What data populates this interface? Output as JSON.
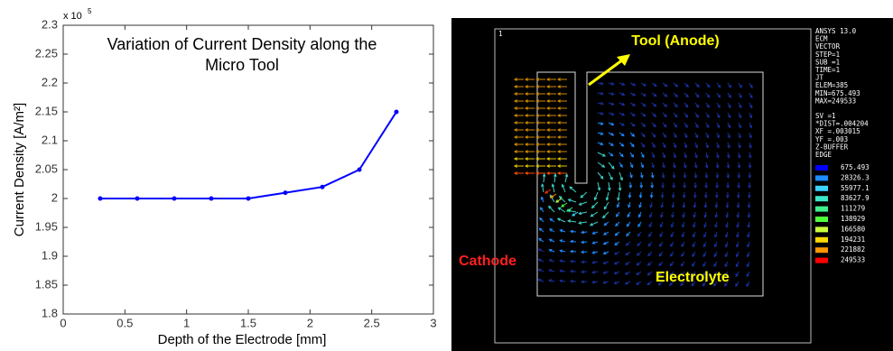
{
  "chart_data": {
    "type": "line",
    "title": [
      "Variation of Current Density along the",
      "Micro Tool"
    ],
    "xlabel": "Depth of the Electrode [mm]",
    "ylabel": "Current Density [A/m²]",
    "y_multiplier": "x 10",
    "y_multiplier_exponent": "5",
    "x": [
      0.3,
      0.6,
      0.9,
      1.2,
      1.5,
      1.8,
      2.1,
      2.4,
      2.7
    ],
    "values": [
      2.0,
      2.0,
      2.0,
      2.0,
      2.0,
      2.01,
      2.02,
      2.05,
      2.15
    ],
    "color": "#0000ff",
    "xlim": [
      0,
      3
    ],
    "xticks": [
      0,
      0.5,
      1,
      1.5,
      2,
      2.5,
      3
    ],
    "ylim": [
      1.8,
      2.3
    ],
    "yticks": [
      1.8,
      1.85,
      1.9,
      1.95,
      2,
      2.05,
      2.1,
      2.15,
      2.2,
      2.25,
      2.3
    ],
    "grid": false
  },
  "simulation_panel": {
    "window_number": "1",
    "tool_label": "Tool (Anode)",
    "cathode_label": "Cathode",
    "electrolyte_label": "Electrolyte",
    "info_lines": [
      "ANSYS 13.0",
      "ECM",
      "VECTOR",
      "STEP=1",
      "SUB =1",
      "TIME=1",
      "JT",
      "ELEM=385",
      "MIN=675.493",
      "MAX=249533"
    ],
    "info_lines_2": [
      "SV  =1",
      "*DIST=.004204",
      "XF  =.003015",
      "YF  =.003",
      "Z-BUFFER",
      "EDGE"
    ],
    "legend": [
      {
        "label": 675.493,
        "color": "#0000ff"
      },
      {
        "label": 28326.3,
        "color": "#1c8cff"
      },
      {
        "label": 55977.1,
        "color": "#3cd2ff"
      },
      {
        "label": 83627.9,
        "color": "#3ce6c8"
      },
      {
        "label": 111279,
        "color": "#3cf08c"
      },
      {
        "label": 138929,
        "color": "#50ff3c"
      },
      {
        "label": 166580,
        "color": "#c8ff3c"
      },
      {
        "label": 194231,
        "color": "#ffd700"
      },
      {
        "label": 221882,
        "color": "#ff9600"
      },
      {
        "label": 249533,
        "color": "#ff0000"
      }
    ]
  }
}
